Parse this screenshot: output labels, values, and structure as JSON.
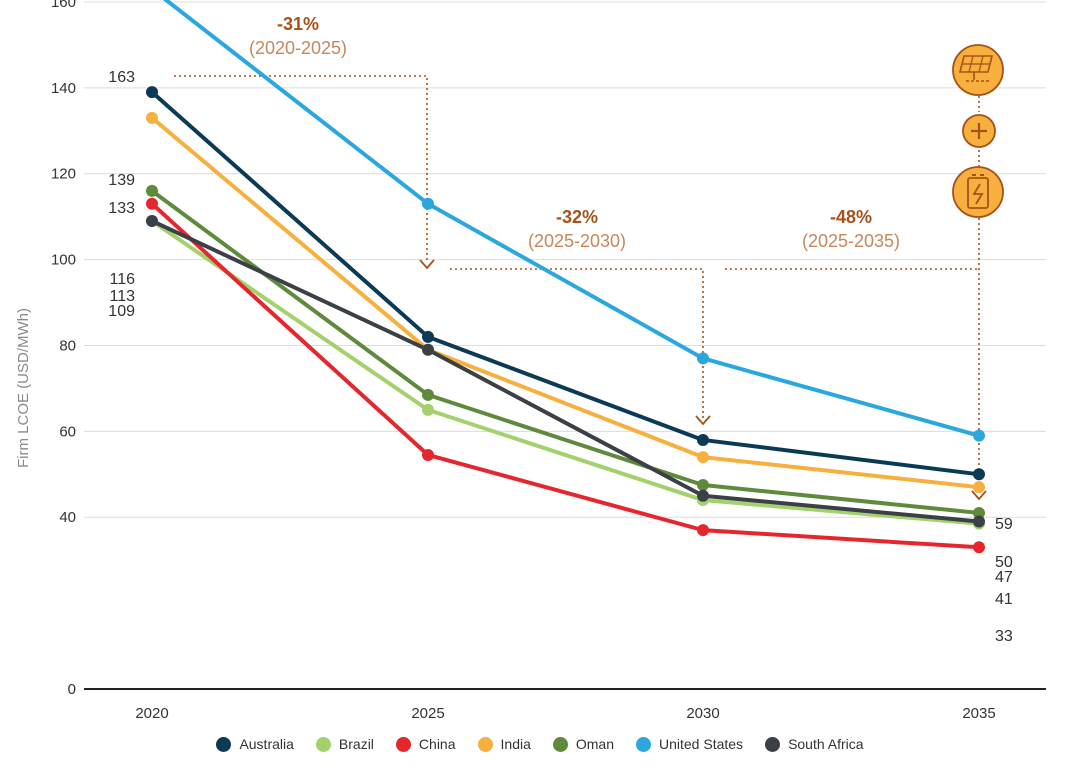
{
  "chart_data": {
    "type": "line",
    "title": "",
    "xlabel": "",
    "ylabel": "Firm LCOE (USD/MWh)",
    "x": [
      "2020",
      "2025",
      "2030",
      "2035"
    ],
    "ylim": [
      0,
      170
    ],
    "yticks": [
      0,
      40,
      60,
      80,
      100,
      120,
      140,
      160
    ],
    "grid": true,
    "legend_position": "bottom",
    "series": [
      {
        "name": "Australia",
        "color": "#0b3a57",
        "values": [
          139,
          82,
          58,
          50
        ]
      },
      {
        "name": "Brazil",
        "color": "#a3d16b",
        "values": [
          109,
          65,
          44,
          38.5
        ]
      },
      {
        "name": "China",
        "color": "#e6262d",
        "values": [
          113,
          54.5,
          37,
          33
        ]
      },
      {
        "name": "India",
        "color": "#f7af3d",
        "values": [
          133,
          79,
          54,
          47
        ]
      },
      {
        "name": "Oman",
        "color": "#5e8a3b",
        "values": [
          116,
          68.5,
          47.5,
          41
        ]
      },
      {
        "name": "United States",
        "color": "#2ba7df",
        "values": [
          163,
          113,
          77,
          59
        ]
      },
      {
        "name": "South Africa",
        "color": "#3a4046",
        "values": [
          109,
          79,
          45,
          39
        ]
      }
    ],
    "start_labels": [
      {
        "series": "United States",
        "text": "163"
      },
      {
        "series": "Australia",
        "text": "139"
      },
      {
        "series": "India",
        "text": "133"
      },
      {
        "series": "Oman",
        "text": "116"
      },
      {
        "series": "China",
        "text": "113"
      },
      {
        "series": "Brazil",
        "text": "109"
      }
    ],
    "end_labels": [
      {
        "series": "United States",
        "text": "59"
      },
      {
        "series": "Australia",
        "text": "50"
      },
      {
        "series": "India",
        "text": "47"
      },
      {
        "series": "Oman",
        "text": "41"
      },
      {
        "series": "China",
        "text": "33"
      }
    ],
    "annotations": [
      {
        "percent": "-31%",
        "range": "(2020-2025)",
        "from": "2020",
        "to": "2025"
      },
      {
        "percent": "-32%",
        "range": "(2025-2030)",
        "from": "2025",
        "to": "2030"
      },
      {
        "percent": "-48%",
        "range": "(2025-2035)",
        "from": "2025",
        "to": "2035"
      }
    ],
    "icons": [
      "solar-panel-icon",
      "plus-icon",
      "battery-icon"
    ],
    "accent_color": "#a6511a",
    "icon_color": "#f7af3d"
  }
}
